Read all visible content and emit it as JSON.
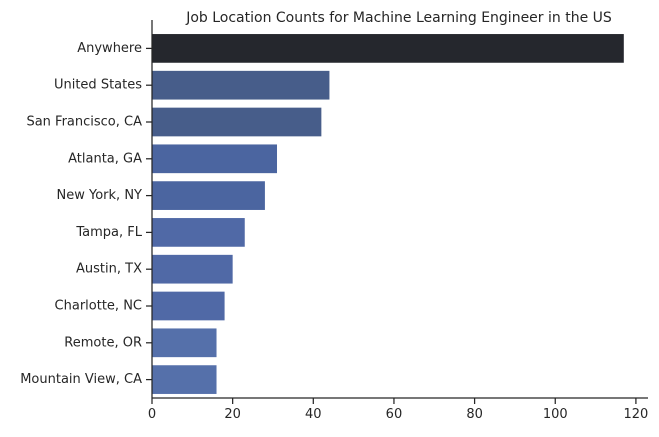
{
  "chart_data": {
    "type": "bar",
    "orientation": "horizontal",
    "title": "Job Location Counts for Machine Learning Engineer in the US",
    "xlabel": "",
    "ylabel": "",
    "categories": [
      "Anywhere",
      "United States",
      "San Francisco, CA",
      "Atlanta, GA",
      "New York, NY",
      "Tampa, FL",
      "Austin, TX",
      "Charlotte, NC",
      "Remote, OR",
      "Mountain View, CA"
    ],
    "values": [
      117,
      44,
      42,
      31,
      28,
      23,
      20,
      18,
      16,
      16
    ],
    "bar_colors": [
      "#25272d",
      "#475d8a",
      "#475d8a",
      "#4b65a0",
      "#4b65a0",
      "#5069a6",
      "#5069a6",
      "#5069a6",
      "#5570aa",
      "#5570aa"
    ],
    "xlim": [
      0,
      123
    ],
    "xticks": [
      0,
      20,
      40,
      60,
      80,
      100,
      120
    ],
    "grid": false,
    "spines": "left-bottom"
  }
}
